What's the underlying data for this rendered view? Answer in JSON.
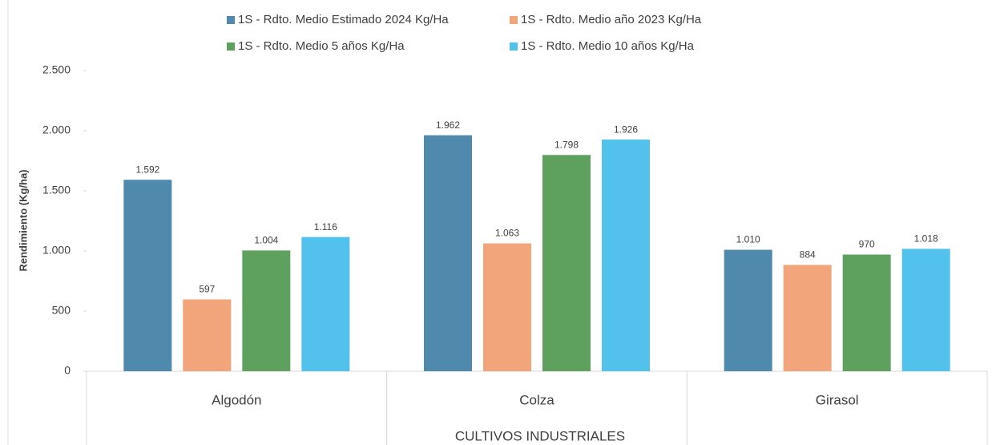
{
  "chart_data": {
    "type": "bar",
    "y_label": "Rendimiento (Kg/ha)",
    "x_label": "CULTIVOS INDUSTRIALES",
    "categories": [
      "Algodón",
      "Colza",
      "Girasol"
    ],
    "series": [
      {
        "name": "1S - Rdto. Medio Estimado 2024 Kg/Ha",
        "color": "#4f89ab",
        "values": [
          1592,
          1962,
          1010
        ],
        "value_labels": [
          "1.592",
          "1.962",
          "1.010"
        ]
      },
      {
        "name": "1S - Rdto. Medio año 2023 Kg/Ha",
        "color": "#f2a47a",
        "values": [
          597,
          1063,
          884
        ],
        "value_labels": [
          "597",
          "1.063",
          "884"
        ]
      },
      {
        "name": "1S - Rdto. Medio 5 años Kg/Ha",
        "color": "#5ea15e",
        "values": [
          1004,
          1798,
          970
        ],
        "value_labels": [
          "1.004",
          "1.798",
          "970"
        ]
      },
      {
        "name": "1S - Rdto. Medio 10 años Kg/Ha",
        "color": "#52c2ec",
        "values": [
          1116,
          1926,
          1018
        ],
        "value_labels": [
          "1.116",
          "1.926",
          "1.018"
        ]
      }
    ],
    "ylim": [
      0,
      2500
    ],
    "yticks": [
      0,
      500,
      {
        "value": 1000,
        "label": "1.000"
      },
      {
        "value": 1500,
        "label": "1.500"
      },
      {
        "value": 2000,
        "label": "2.000"
      },
      {
        "value": 2500,
        "label": "2.500"
      }
    ],
    "legend": "top"
  }
}
